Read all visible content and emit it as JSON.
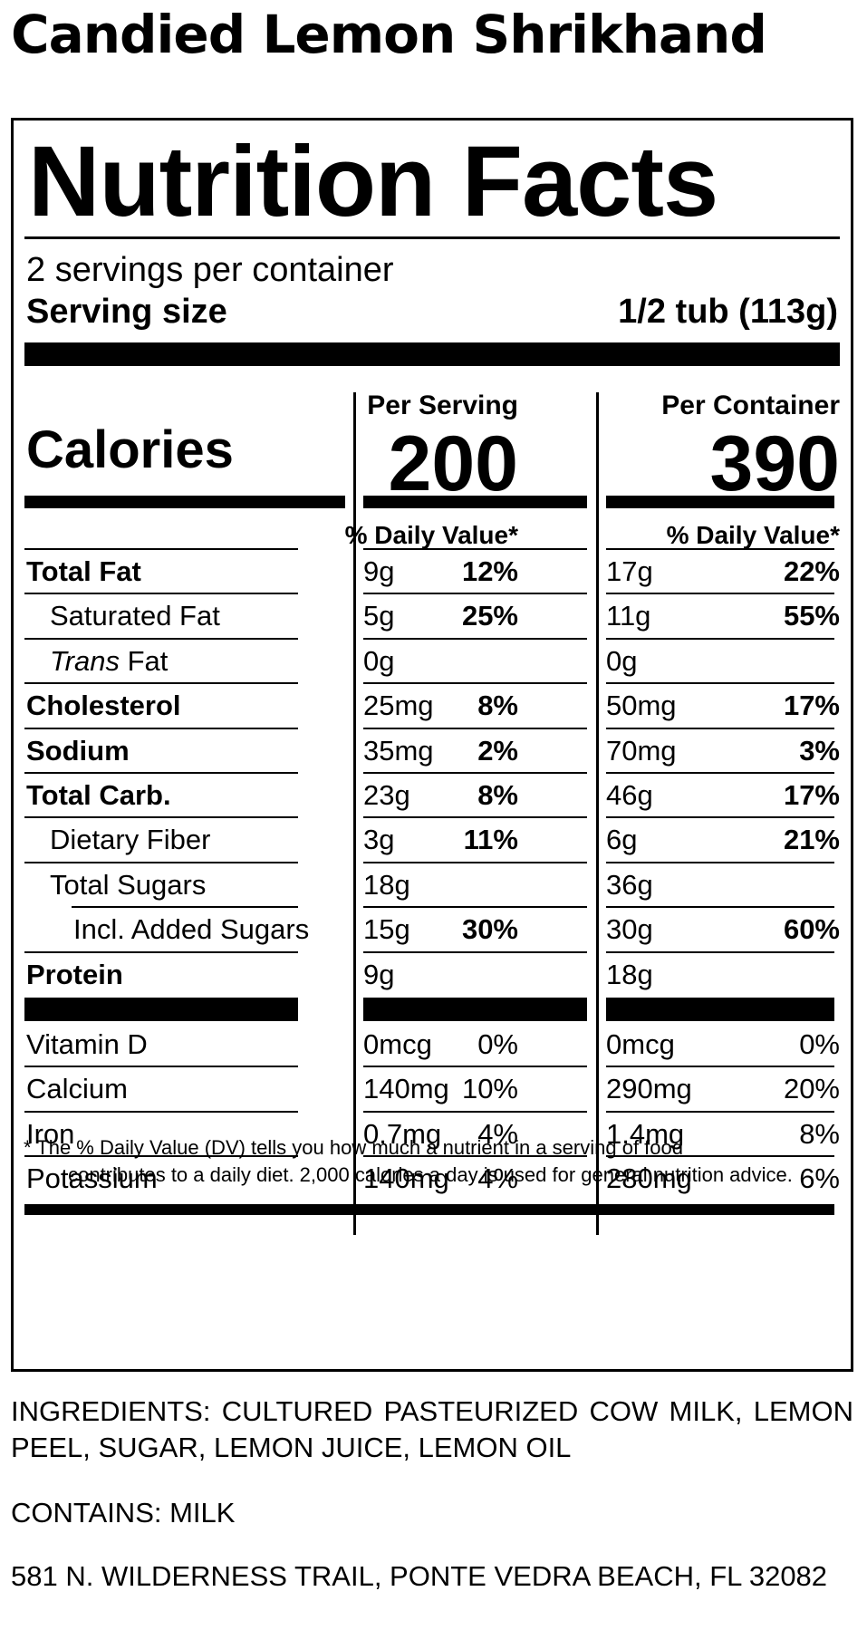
{
  "product_name": "Candied Lemon Shrikhand",
  "label": {
    "title": "Nutrition Facts",
    "servings_per_container": "2 servings per container",
    "serving_size_label": "Serving size",
    "serving_size_value": "1/2 tub (113g)",
    "calories_label": "Calories",
    "per_serving_header": "Per Serving",
    "per_container_header": "Per Container",
    "calories_per_serving": "200",
    "calories_per_container": "390",
    "dv_header": "% Daily Value*",
    "nutrients": [
      {
        "name": "Total Fat",
        "serving_amt": "9g",
        "serving_dv": "12%",
        "container_amt": "17g",
        "container_dv": "22%"
      },
      {
        "name": "Saturated Fat",
        "serving_amt": "5g",
        "serving_dv": "25%",
        "container_amt": "11g",
        "container_dv": "55%"
      },
      {
        "name_italic": "Trans",
        "name_rest": " Fat",
        "serving_amt": "0g",
        "serving_dv": "",
        "container_amt": "0g",
        "container_dv": ""
      },
      {
        "name": "Cholesterol",
        "serving_amt": "25mg",
        "serving_dv": "8%",
        "container_amt": "50mg",
        "container_dv": "17%"
      },
      {
        "name": "Sodium",
        "serving_amt": "35mg",
        "serving_dv": "2%",
        "container_amt": "70mg",
        "container_dv": "3%"
      },
      {
        "name": "Total Carb.",
        "serving_amt": "23g",
        "serving_dv": "8%",
        "container_amt": "46g",
        "container_dv": "17%"
      },
      {
        "name": "Dietary Fiber",
        "serving_amt": "3g",
        "serving_dv": "11%",
        "container_amt": "6g",
        "container_dv": "21%"
      },
      {
        "name": "Total Sugars",
        "serving_amt": "18g",
        "serving_dv": "",
        "container_amt": "36g",
        "container_dv": ""
      },
      {
        "name": "Incl. Added Sugars",
        "serving_amt": "15g",
        "serving_dv": "30%",
        "container_amt": "30g",
        "container_dv": "60%"
      },
      {
        "name": "Protein",
        "serving_amt": "9g",
        "serving_dv": "",
        "container_amt": "18g",
        "container_dv": ""
      }
    ],
    "vitamins": [
      {
        "name": "Vitamin D",
        "serving_amt": "0mcg",
        "serving_dv": "0%",
        "container_amt": "0mcg",
        "container_dv": "0%"
      },
      {
        "name": "Calcium",
        "serving_amt": "140mg",
        "serving_dv": "10%",
        "container_amt": "290mg",
        "container_dv": "20%"
      },
      {
        "name": "Iron",
        "serving_amt": "0.7mg",
        "serving_dv": "4%",
        "container_amt": "1.4mg",
        "container_dv": "8%"
      },
      {
        "name": "Potassium",
        "serving_amt": "140mg",
        "serving_dv": "4%",
        "container_amt": "280mg",
        "container_dv": "6%"
      }
    ],
    "footnote_line1": "* The % Daily Value (DV) tells you how much a nutrient in a serving of food",
    "footnote_line2": "contributes to a daily diet. 2,000 calories a day is used for general nutrition advice."
  },
  "ingredients": "INGREDIENTS: CULTURED PASTEURIZED COW MILK, LEMON PEEL, SUGAR, LEMON JUICE, LEMON OIL",
  "contains": "CONTAINS: MILK",
  "address": "581 N. WILDERNESS TRAIL, PONTE VEDRA BEACH, FL 32082"
}
